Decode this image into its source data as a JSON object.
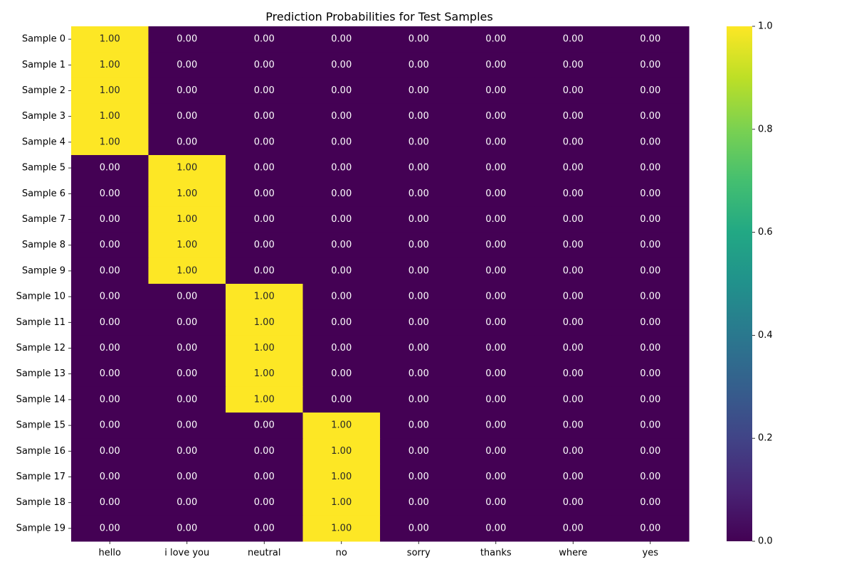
{
  "chart_data": {
    "type": "heatmap",
    "title": "Prediction Probabilities for Test Samples",
    "xlabel": "",
    "ylabel": "",
    "x_categories": [
      "hello",
      "i love you",
      "neutral",
      "no",
      "sorry",
      "thanks",
      "where",
      "yes"
    ],
    "y_categories": [
      "Sample 0",
      "Sample 1",
      "Sample 2",
      "Sample 3",
      "Sample 4",
      "Sample 5",
      "Sample 6",
      "Sample 7",
      "Sample 8",
      "Sample 9",
      "Sample 10",
      "Sample 11",
      "Sample 12",
      "Sample 13",
      "Sample 14",
      "Sample 15",
      "Sample 16",
      "Sample 17",
      "Sample 18",
      "Sample 19"
    ],
    "values": [
      [
        1,
        0,
        0,
        0,
        0,
        0,
        0,
        0
      ],
      [
        1,
        0,
        0,
        0,
        0,
        0,
        0,
        0
      ],
      [
        1,
        0,
        0,
        0,
        0,
        0,
        0,
        0
      ],
      [
        1,
        0,
        0,
        0,
        0,
        0,
        0,
        0
      ],
      [
        1,
        0,
        0,
        0,
        0,
        0,
        0,
        0
      ],
      [
        0,
        1,
        0,
        0,
        0,
        0,
        0,
        0
      ],
      [
        0,
        1,
        0,
        0,
        0,
        0,
        0,
        0
      ],
      [
        0,
        1,
        0,
        0,
        0,
        0,
        0,
        0
      ],
      [
        0,
        1,
        0,
        0,
        0,
        0,
        0,
        0
      ],
      [
        0,
        1,
        0,
        0,
        0,
        0,
        0,
        0
      ],
      [
        0,
        0,
        1,
        0,
        0,
        0,
        0,
        0
      ],
      [
        0,
        0,
        1,
        0,
        0,
        0,
        0,
        0
      ],
      [
        0,
        0,
        1,
        0,
        0,
        0,
        0,
        0
      ],
      [
        0,
        0,
        1,
        0,
        0,
        0,
        0,
        0
      ],
      [
        0,
        0,
        1,
        0,
        0,
        0,
        0,
        0
      ],
      [
        0,
        0,
        0,
        1,
        0,
        0,
        0,
        0
      ],
      [
        0,
        0,
        0,
        1,
        0,
        0,
        0,
        0
      ],
      [
        0,
        0,
        0,
        1,
        0,
        0,
        0,
        0
      ],
      [
        0,
        0,
        0,
        1,
        0,
        0,
        0,
        0
      ],
      [
        0,
        0,
        0,
        1,
        0,
        0,
        0,
        0
      ]
    ],
    "annotation_format": "0.00",
    "colormap": "viridis",
    "vmin": 0,
    "vmax": 1,
    "colorbar_ticks": [
      0.0,
      0.2,
      0.4,
      0.6,
      0.8,
      1.0
    ],
    "colorbar_tick_labels": [
      "0.0",
      "0.2",
      "0.4",
      "0.6",
      "0.8",
      "1.0"
    ],
    "low_color": "#440154",
    "high_color": "#fde725"
  }
}
